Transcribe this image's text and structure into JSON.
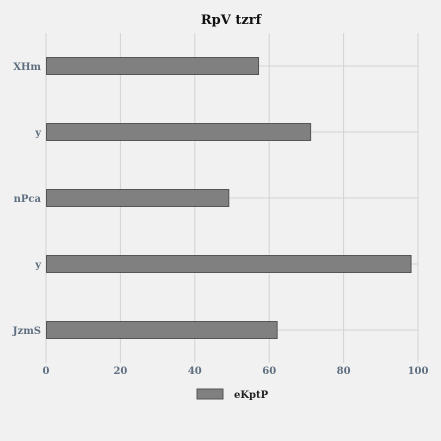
{
  "chart_data": {
    "type": "bar",
    "orientation": "horizontal",
    "title": "RpV tzrf",
    "categories": [
      "XHm",
      "y",
      "nPca",
      "y",
      "JzmS"
    ],
    "series": [
      {
        "name": "eKptP",
        "values": [
          57,
          71,
          49,
          98,
          62
        ]
      }
    ],
    "xlabel": "",
    "ylabel": "",
    "xlim": [
      0,
      100
    ],
    "xticks": [
      0,
      20,
      40,
      60,
      80,
      100
    ],
    "grid": true,
    "legend_position": "bottom",
    "colors": {
      "bar_fill": "#808080",
      "bar_stroke": "#555555",
      "background": "#f1f1f1",
      "grid": "#d2d2d2"
    }
  }
}
